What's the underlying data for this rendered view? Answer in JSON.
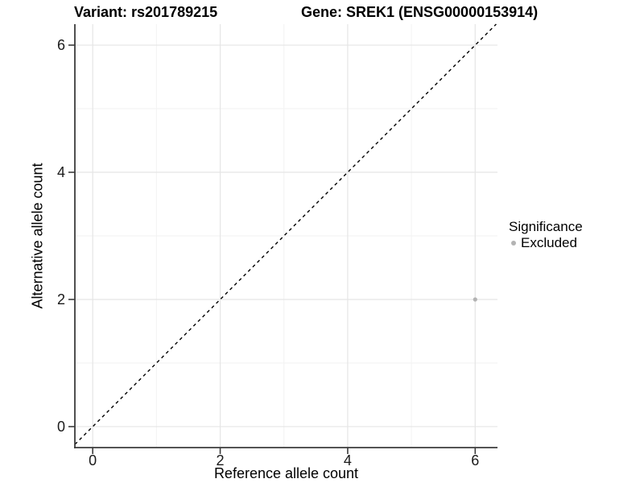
{
  "chart_data": {
    "type": "scatter",
    "title_left": "Variant: rs201789215",
    "title_right": "Gene: SREK1 (ENSG00000153914)",
    "xlabel": "Reference allele count",
    "ylabel": "Alternative allele count",
    "xlim": [
      -0.28,
      6.35
    ],
    "ylim": [
      -0.33,
      6.33
    ],
    "x_ticks": [
      0,
      2,
      4,
      6
    ],
    "y_ticks": [
      0,
      2,
      4,
      6
    ],
    "minor_gridlines_x": [
      1,
      3,
      5
    ],
    "minor_gridlines_y": [
      1,
      3,
      5
    ],
    "grid": "major and minor, light gray on white",
    "identity_line": {
      "rule": "y=x",
      "style": "dashed",
      "color": "#000000"
    },
    "series": [
      {
        "name": "Excluded",
        "color": "#b3b3b3",
        "point_radius": 2.6,
        "points": [
          {
            "x": 6,
            "y": 2
          }
        ]
      }
    ],
    "legend": {
      "title": "Significance",
      "position": "right",
      "items": [
        {
          "label": "Excluded",
          "color": "#b3b3b3"
        }
      ]
    }
  },
  "colors": {
    "background": "#ffffff",
    "grid_major": "#e5e5e5",
    "grid_minor": "#f2f2f2",
    "axis_line": "#3c3c3c",
    "tick_mark": "#3c3c3c",
    "tick_text": "#1a1a1a",
    "title_text": "#000000",
    "identity_line": "#000000",
    "point_excluded": "#b3b3b3"
  }
}
